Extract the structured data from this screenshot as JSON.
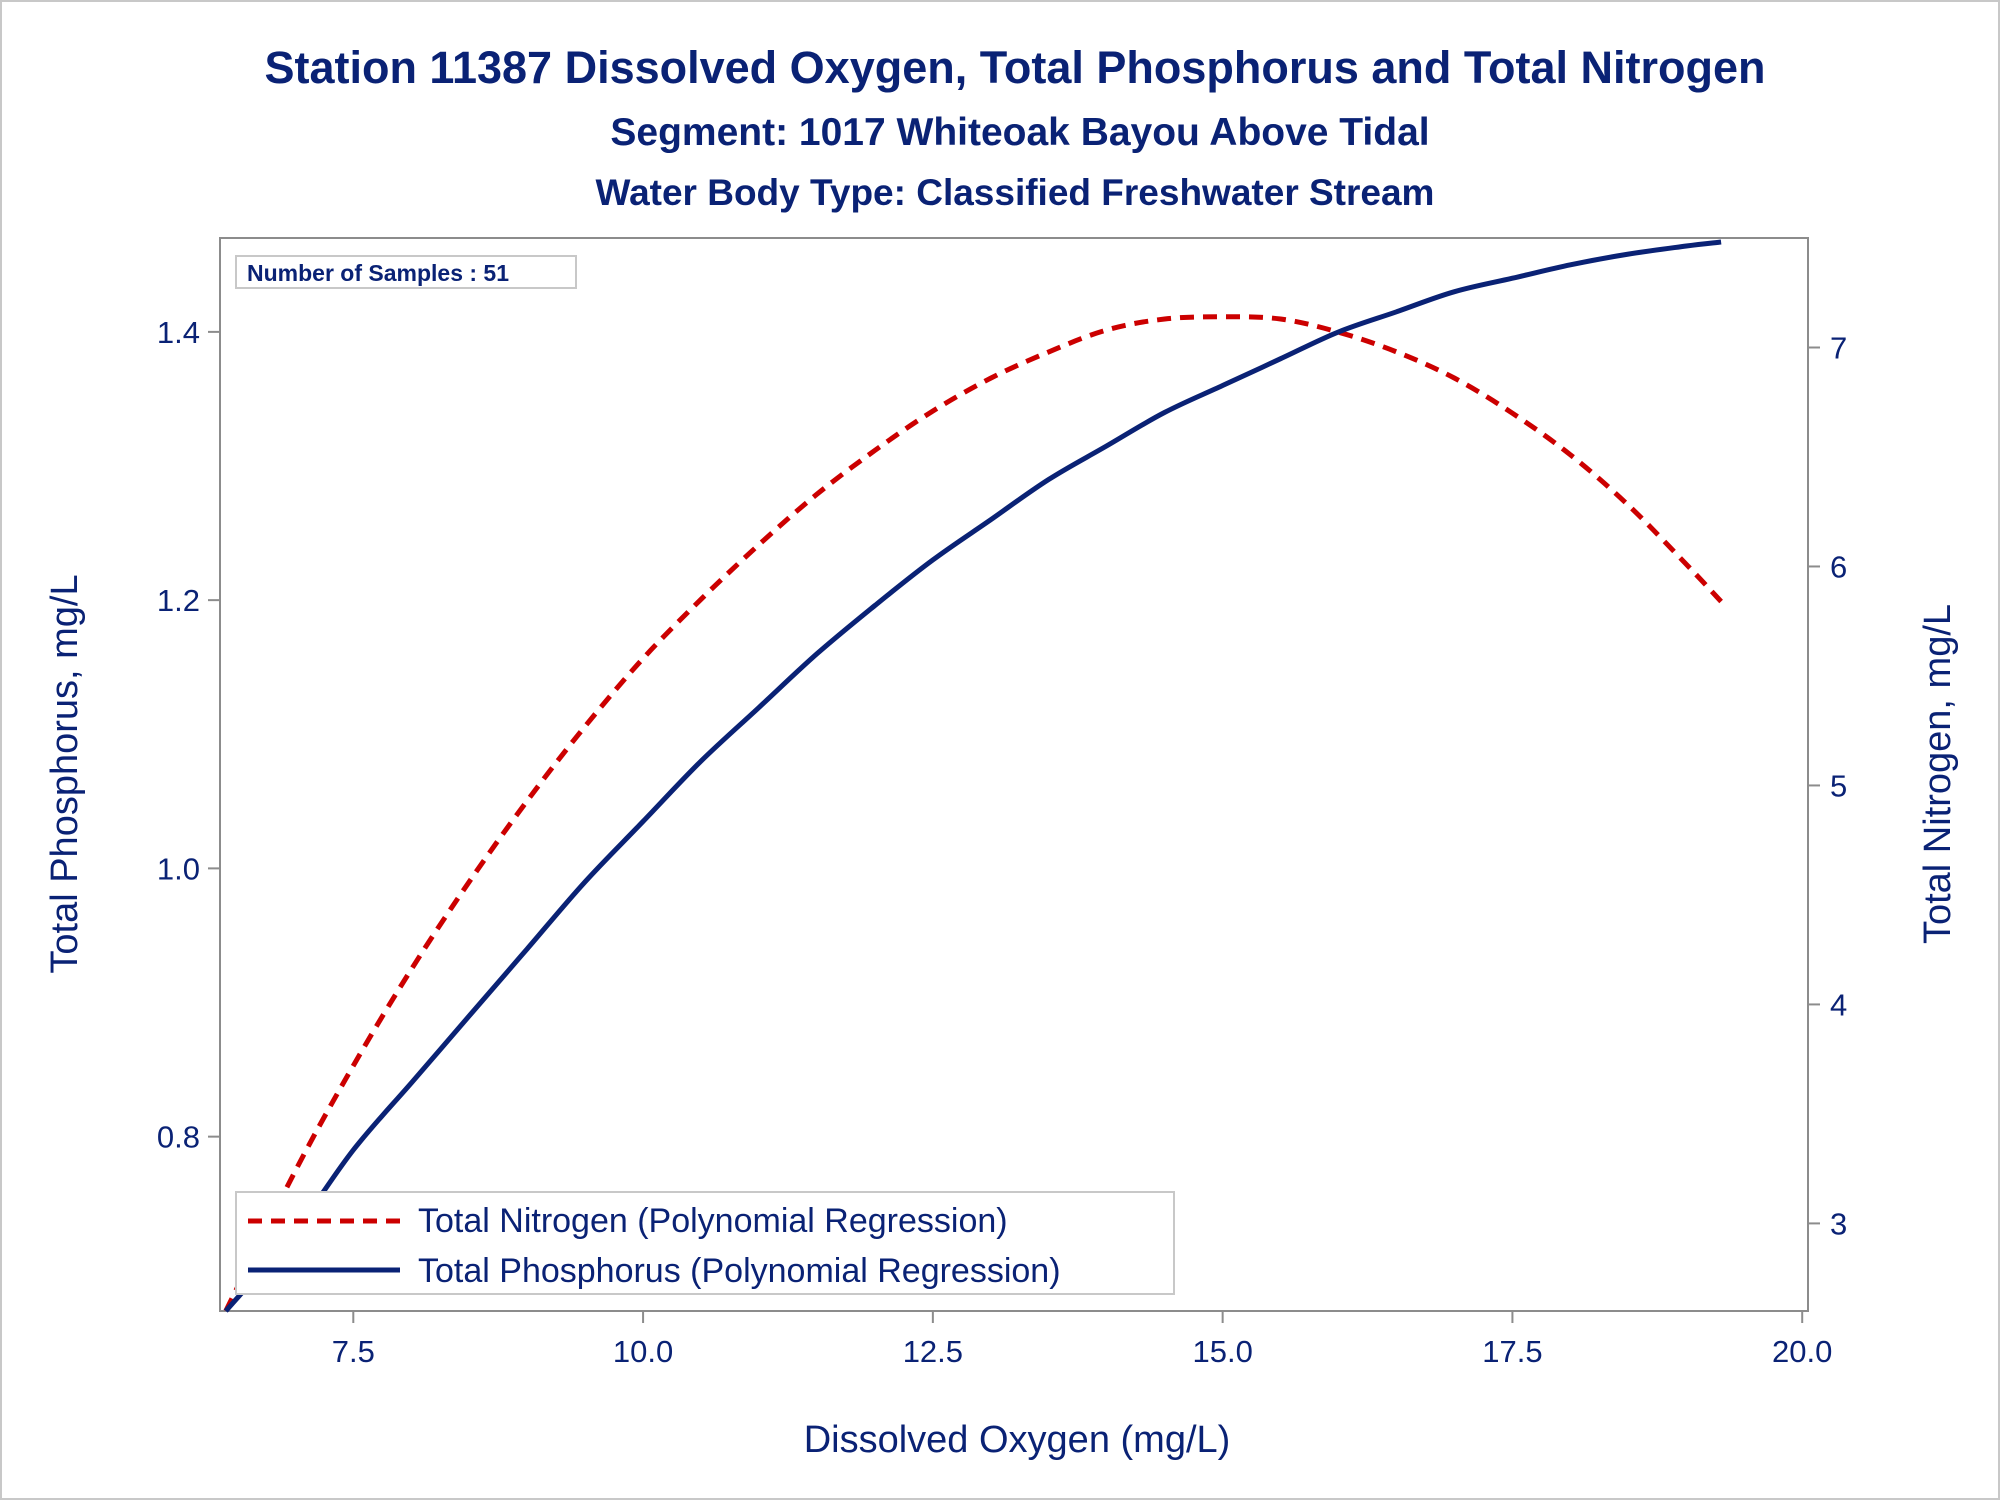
{
  "titles": {
    "line1": "Station 11387  Dissolved Oxygen, Total Phosphorus and Total Nitrogen",
    "line2": "Segment: 1017  Whiteoak Bayou Above Tidal",
    "line3": "Water Body Type: Classified Freshwater Stream"
  },
  "inset": {
    "label": "Number of Samples : 51"
  },
  "legend": {
    "nitrogen": "Total Nitrogen (Polynomial Regression)",
    "phosphorus": "Total Phosphorus (Polynomial Regression)"
  },
  "colors": {
    "nitrogen": "#cc0000",
    "phosphorus": "#0a2275",
    "text": "#0a2275",
    "frame": "#8c8c8c"
  },
  "chart_data": {
    "type": "line",
    "xlabel": "Dissolved Oxygen (mg/L)",
    "ylabel": "Total Phosphorus, mg/L",
    "y2label": "Total Nitrogen, mg/L",
    "xlim": [
      6.35,
      20.05
    ],
    "ylim": [
      0.67,
      1.47
    ],
    "y2lim": [
      2.6,
      7.5
    ],
    "xticks": [
      "7.5",
      "10.0",
      "12.5",
      "15.0",
      "17.5",
      "20.0"
    ],
    "yticks": [
      "0.8",
      "1.0",
      "1.2",
      "1.4"
    ],
    "y2ticks": [
      "3",
      "4",
      "5",
      "6",
      "7"
    ],
    "series": [
      {
        "name": "Total Nitrogen (Polynomial Regression)",
        "axis": "y2",
        "style": "dashed",
        "x": [
          6.4,
          7.0,
          7.5,
          8.0,
          8.5,
          9.0,
          9.5,
          10.0,
          10.5,
          11.0,
          11.5,
          12.0,
          12.5,
          13.0,
          13.5,
          14.0,
          14.5,
          15.0,
          15.5,
          16.0,
          16.5,
          17.0,
          17.5,
          18.0,
          18.5,
          19.0,
          19.3
        ],
        "y": [
          2.6,
          3.24,
          3.72,
          4.16,
          4.56,
          4.93,
          5.27,
          5.58,
          5.85,
          6.1,
          6.33,
          6.53,
          6.71,
          6.86,
          6.98,
          7.08,
          7.13,
          7.14,
          7.13,
          7.07,
          6.98,
          6.86,
          6.7,
          6.51,
          6.28,
          6.01,
          5.84
        ]
      },
      {
        "name": "Total Phosphorus (Polynomial Regression)",
        "axis": "y",
        "style": "solid",
        "x": [
          6.4,
          7.0,
          7.5,
          8.0,
          8.5,
          9.0,
          9.5,
          10.0,
          10.5,
          11.0,
          11.5,
          12.0,
          12.5,
          13.0,
          13.5,
          14.0,
          14.5,
          15.0,
          15.5,
          16.0,
          16.5,
          17.0,
          17.5,
          18.0,
          18.5,
          19.0,
          19.3
        ],
        "y": [
          0.67,
          0.73,
          0.79,
          0.84,
          0.89,
          0.94,
          0.99,
          1.035,
          1.08,
          1.12,
          1.16,
          1.196,
          1.23,
          1.26,
          1.29,
          1.315,
          1.34,
          1.36,
          1.38,
          1.4,
          1.415,
          1.43,
          1.44,
          1.45,
          1.458,
          1.464,
          1.467
        ]
      }
    ]
  }
}
